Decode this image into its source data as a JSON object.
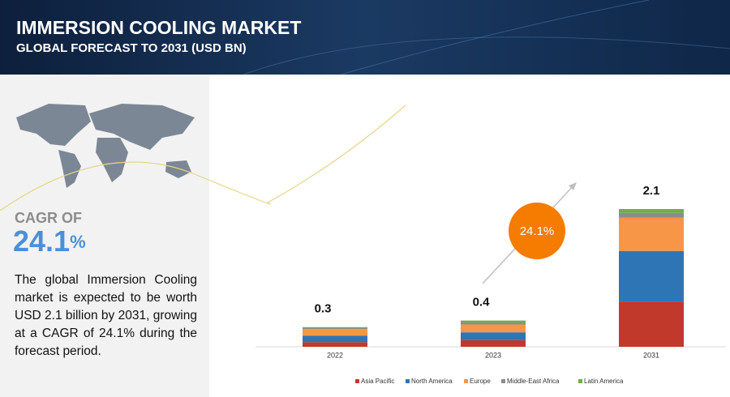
{
  "header": {
    "title": "IMMERSION COOLING MARKET",
    "subtitle": "GLOBAL FORECAST TO 2031 (USD BN)"
  },
  "sidebar": {
    "cagr_label": "CAGR OF",
    "cagr_value": "24.1",
    "cagr_unit": "%",
    "description": "The global Immersion Cooling market is expected to be worth USD 2.1 billion by 2031, growing at a CAGR of 24.1% during the forecast period."
  },
  "chart_data": {
    "type": "stacked_bar",
    "categories": [
      "2022",
      "2023",
      "2031"
    ],
    "totals": [
      0.3,
      0.4,
      2.1
    ],
    "annotation": "24.1%",
    "series": [
      {
        "name": "Asia Pacific",
        "color": "#c0392b",
        "values": [
          0.07,
          0.1,
          0.69
        ]
      },
      {
        "name": "North America",
        "color": "#2e75b6",
        "values": [
          0.1,
          0.12,
          0.77
        ]
      },
      {
        "name": "Europe",
        "color": "#f79646",
        "values": [
          0.1,
          0.12,
          0.51
        ]
      },
      {
        "name": "Middle-East Africa",
        "color": "#8c8c8c",
        "values": [
          0.015,
          0.03,
          0.07
        ]
      },
      {
        "name": "Latin America",
        "color": "#70ad47",
        "values": [
          0.015,
          0.03,
          0.06
        ]
      }
    ]
  }
}
